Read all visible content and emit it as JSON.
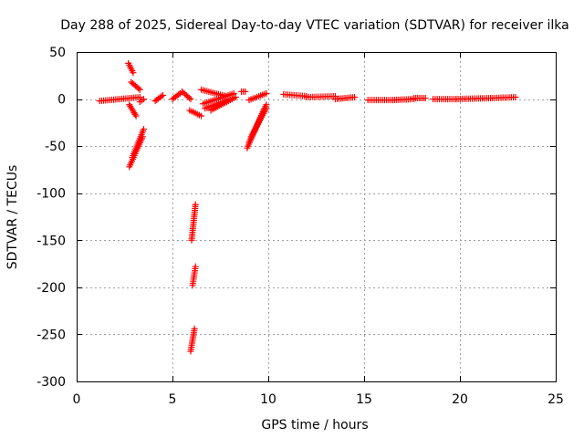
{
  "chart_data": {
    "type": "scatter",
    "title": "Day 288 of 2025, Sidereal Day-to-day VTEC variation (SDTVAR) for receiver ilka",
    "xlabel": "GPS time / hours",
    "ylabel": "SDTVAR / TECUs",
    "xlim": [
      0,
      25
    ],
    "ylim": [
      -300,
      50
    ],
    "xticks": [
      0,
      5,
      10,
      15,
      20,
      25
    ],
    "yticks": [
      50,
      0,
      -50,
      -100,
      -150,
      -200,
      -250,
      -300
    ],
    "grid": true,
    "marker": "+",
    "color": "#ff0000",
    "series": [
      {
        "name": "SDTVAR",
        "segments": [
          {
            "x0": 1.2,
            "x1": 3.3,
            "y0": -2,
            "y1": 2
          },
          {
            "x0": 2.7,
            "x1": 2.95,
            "y0": 38,
            "y1": 28
          },
          {
            "x0": 2.85,
            "x1": 3.3,
            "y0": 18,
            "y1": 10
          },
          {
            "x0": 3.3,
            "x1": 3.5,
            "y0": -3,
            "y1": 0
          },
          {
            "x0": 2.75,
            "x1": 3.1,
            "y0": -6,
            "y1": -18
          },
          {
            "x0": 2.75,
            "x1": 3.45,
            "y0": -72,
            "y1": -40
          },
          {
            "x0": 2.9,
            "x1": 3.5,
            "y0": -62,
            "y1": -32
          },
          {
            "x0": 4.1,
            "x1": 4.5,
            "y0": -2,
            "y1": 4
          },
          {
            "x0": 5.0,
            "x1": 5.4,
            "y0": 0,
            "y1": 6
          },
          {
            "x0": 5.5,
            "x1": 5.95,
            "y0": 8,
            "y1": 0
          },
          {
            "x0": 5.9,
            "x1": 6.5,
            "y0": -12,
            "y1": -18
          },
          {
            "x0": 6.5,
            "x1": 7.8,
            "y0": 10,
            "y1": 3
          },
          {
            "x0": 6.6,
            "x1": 8.2,
            "y0": -5,
            "y1": 6
          },
          {
            "x0": 6.7,
            "x1": 8.0,
            "y0": -10,
            "y1": 0
          },
          {
            "x0": 7.0,
            "x1": 8.3,
            "y0": -12,
            "y1": 2
          },
          {
            "x0": 8.6,
            "x1": 8.8,
            "y0": 8,
            "y1": 8
          },
          {
            "x0": 9.0,
            "x1": 9.9,
            "y0": -1,
            "y1": 6
          },
          {
            "x0": 8.9,
            "x1": 9.8,
            "y0": -52,
            "y1": -10
          },
          {
            "x0": 9.0,
            "x1": 9.9,
            "y0": -46,
            "y1": -6
          },
          {
            "x0": 9.1,
            "x1": 9.9,
            "y0": -40,
            "y1": -10
          },
          {
            "x0": 6.0,
            "x1": 6.2,
            "y0": -150,
            "y1": -112
          },
          {
            "x0": 6.05,
            "x1": 6.2,
            "y0": -198,
            "y1": -178
          },
          {
            "x0": 5.95,
            "x1": 6.15,
            "y0": -268,
            "y1": -244
          },
          {
            "x0": 10.8,
            "x1": 12.0,
            "y0": 5,
            "y1": 3
          },
          {
            "x0": 12.0,
            "x1": 13.5,
            "y0": 2,
            "y1": 3
          },
          {
            "x0": 13.5,
            "x1": 14.5,
            "y0": 0,
            "y1": 2
          },
          {
            "x0": 15.2,
            "x1": 16.5,
            "y0": -1,
            "y1": -1
          },
          {
            "x0": 16.5,
            "x1": 17.6,
            "y0": -1,
            "y1": 0
          },
          {
            "x0": 17.6,
            "x1": 18.2,
            "y0": 1,
            "y1": 1
          },
          {
            "x0": 18.6,
            "x1": 19.8,
            "y0": 0,
            "y1": 0
          },
          {
            "x0": 19.8,
            "x1": 21.6,
            "y0": 0,
            "y1": 1
          },
          {
            "x0": 21.6,
            "x1": 22.9,
            "y0": 1,
            "y1": 2
          }
        ]
      }
    ]
  }
}
